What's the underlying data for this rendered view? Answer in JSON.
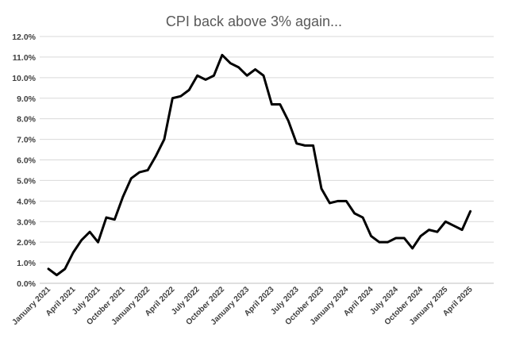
{
  "chart_data": {
    "type": "line",
    "title": "CPI back above 3%  again...",
    "xlabel": "",
    "ylabel": "",
    "ylim": [
      0,
      12
    ],
    "y_ticks": [
      "0.0%",
      "1.0%",
      "2.0%",
      "3.0%",
      "4.0%",
      "5.0%",
      "6.0%",
      "7.0%",
      "8.0%",
      "9.0%",
      "10.0%",
      "11.0%",
      "12.0%"
    ],
    "x_tick_labels": [
      "January 2021",
      "April 2021",
      "July 2021",
      "October 2021",
      "January 2022",
      "April 2022",
      "July 2022",
      "October 2022",
      "January 2023",
      "April 2023",
      "July 2023",
      "October 2023",
      "January 2024",
      "April 2024",
      "July 2024",
      "October 2024",
      "January 2025",
      "April 2025"
    ],
    "grid": true,
    "legend": "none",
    "series_color": "#000000",
    "series": [
      {
        "values": [
          0.7,
          0.4,
          0.7,
          1.5,
          2.1,
          2.5,
          2.0,
          3.2,
          3.1,
          4.2,
          5.1,
          5.4,
          5.5,
          6.2,
          7.0,
          9.0,
          9.1,
          9.4,
          10.1,
          9.9,
          10.1,
          11.1,
          10.7,
          10.5,
          10.1,
          10.4,
          10.1,
          8.7,
          8.7,
          7.9,
          6.8,
          6.7,
          6.7,
          4.6,
          3.9,
          4.0,
          4.0,
          3.4,
          3.2,
          2.3,
          2.0,
          2.0,
          2.2,
          2.2,
          1.7,
          2.3,
          2.6,
          2.5,
          3.0,
          2.8,
          2.6,
          3.5
        ]
      }
    ]
  }
}
